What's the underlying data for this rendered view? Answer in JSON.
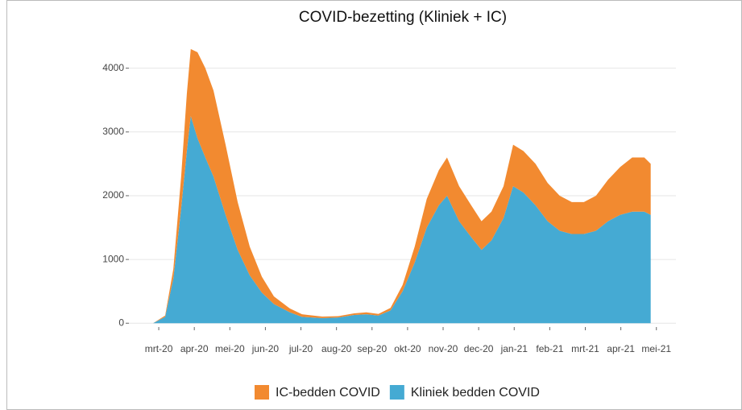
{
  "chart_data": {
    "type": "stacked_area",
    "title": "COVID-bezetting (Kliniek + IC)",
    "x": [
      -0.16,
      0.18,
      0.41,
      0.63,
      0.79,
      0.9,
      1.09,
      1.31,
      1.54,
      1.88,
      2.22,
      2.56,
      2.9,
      3.24,
      3.69,
      4.03,
      4.6,
      5.05,
      5.5,
      5.84,
      6.18,
      6.52,
      6.86,
      7.2,
      7.54,
      7.88,
      8.11,
      8.45,
      8.79,
      9.08,
      9.36,
      9.7,
      9.97,
      10.26,
      10.6,
      10.94,
      11.28,
      11.62,
      11.96,
      12.3,
      12.64,
      12.98,
      13.32,
      13.66,
      13.84
    ],
    "series": [
      {
        "name": "IC-bedden COVID",
        "color": "#f28a30",
        "values": [
          0,
          20,
          150,
          500,
          900,
          1050,
          1350,
          1400,
          1350,
          1100,
          750,
          450,
          250,
          120,
          60,
          40,
          25,
          20,
          25,
          30,
          25,
          40,
          100,
          250,
          450,
          550,
          600,
          550,
          500,
          450,
          450,
          500,
          650,
          650,
          650,
          600,
          550,
          500,
          500,
          550,
          650,
          750,
          850,
          850,
          800
        ]
      },
      {
        "name": "Kliniek bedden COVID",
        "color": "#45aad3",
        "values": [
          0,
          100,
          700,
          1800,
          2700,
          3250,
          2900,
          2600,
          2300,
          1700,
          1150,
          750,
          480,
          300,
          170,
          100,
          80,
          90,
          130,
          140,
          120,
          200,
          500,
          950,
          1500,
          1850,
          2000,
          1600,
          1350,
          1150,
          1300,
          1650,
          2150,
          2050,
          1850,
          1600,
          1450,
          1400,
          1400,
          1450,
          1600,
          1700,
          1750,
          1750,
          1700
        ]
      }
    ],
    "xlim": [
      -0.84,
      14.55
    ],
    "xticks": [
      {
        "value": 0,
        "label": "mrt-20"
      },
      {
        "value": 1,
        "label": "apr-20"
      },
      {
        "value": 2,
        "label": "mei-20"
      },
      {
        "value": 3,
        "label": "jun-20"
      },
      {
        "value": 4,
        "label": "jul-20"
      },
      {
        "value": 5,
        "label": "aug-20"
      },
      {
        "value": 6,
        "label": "sep-20"
      },
      {
        "value": 7,
        "label": "okt-20"
      },
      {
        "value": 8,
        "label": "nov-20"
      },
      {
        "value": 9,
        "label": "dec-20"
      },
      {
        "value": 10,
        "label": "jan-21"
      },
      {
        "value": 11,
        "label": "feb-21"
      },
      {
        "value": 12,
        "label": "mrt-21"
      },
      {
        "value": 13,
        "label": "apr-21"
      },
      {
        "value": 14,
        "label": "mei-21"
      }
    ],
    "ylim": [
      -60,
      4400
    ],
    "yticks": [
      0,
      1000,
      2000,
      3000,
      4000
    ],
    "grid": true,
    "legend": "bottom"
  }
}
